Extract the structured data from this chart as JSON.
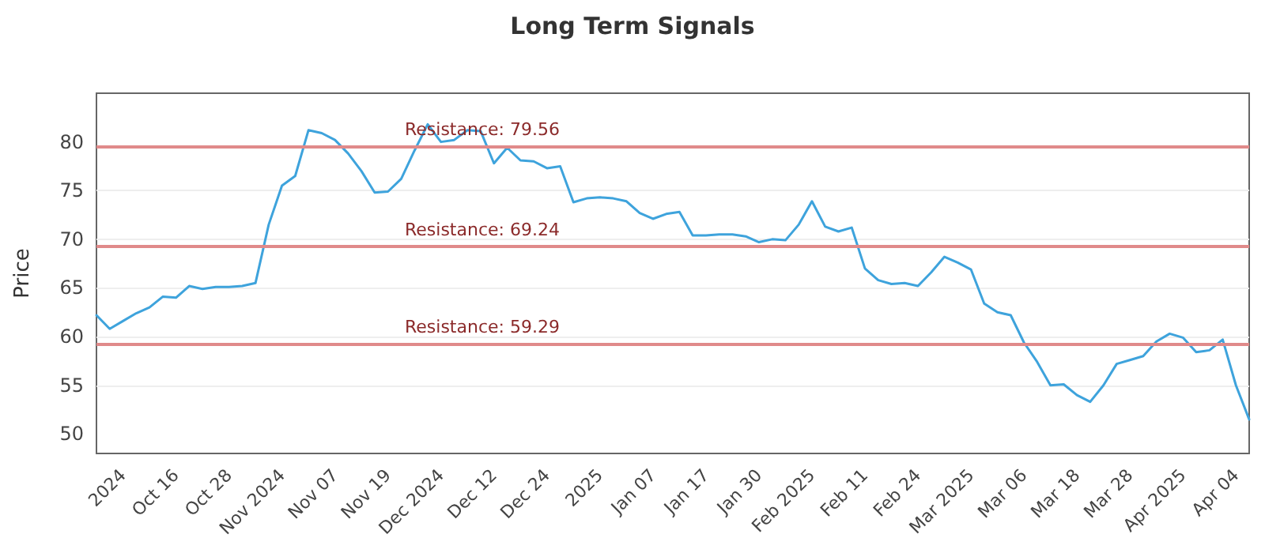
{
  "chart_data": {
    "type": "line",
    "title": "Long Term Signals",
    "ylabel": "Price",
    "categories": [
      null,
      null,
      "2024",
      null,
      null,
      null,
      "Oct 16",
      null,
      null,
      null,
      "Oct 28",
      null,
      null,
      null,
      "Nov 2024",
      null,
      null,
      null,
      "Nov 07",
      null,
      null,
      null,
      "Nov 19",
      null,
      null,
      null,
      "Dec 2024",
      null,
      null,
      null,
      "Dec 12",
      null,
      null,
      null,
      "Dec 24",
      null,
      null,
      null,
      "2025",
      null,
      null,
      null,
      "Jan 07",
      null,
      null,
      null,
      "Jan 17",
      null,
      null,
      null,
      "Jan 30",
      null,
      null,
      null,
      "Feb 2025",
      null,
      null,
      null,
      "Feb 11",
      null,
      null,
      null,
      "Feb 24",
      null,
      null,
      null,
      "Mar 2025",
      null,
      null,
      null,
      "Mar 06",
      null,
      null,
      null,
      "Mar 18",
      null,
      null,
      null,
      "Mar 28",
      null,
      null,
      null,
      "Apr 2025",
      null,
      null,
      null,
      "Apr 04",
      null
    ],
    "series": [
      {
        "color": "#3ea3dc",
        "values": [
          62.2,
          60.8,
          61.6,
          62.4,
          63.0,
          64.1,
          64.0,
          65.2,
          64.9,
          65.1,
          65.1,
          65.2,
          65.5,
          71.5,
          75.5,
          76.5,
          81.2,
          80.9,
          80.2,
          78.8,
          77.0,
          74.8,
          74.9,
          76.2,
          79.1,
          81.8,
          80.0,
          80.2,
          81.2,
          81.1,
          77.8,
          79.4,
          78.1,
          78.0,
          77.3,
          77.5,
          73.8,
          74.2,
          74.3,
          74.2,
          73.9,
          72.7,
          72.1,
          72.6,
          72.8,
          70.4,
          70.4,
          70.5,
          70.5,
          70.3,
          69.7,
          70.0,
          69.9,
          71.5,
          73.9,
          71.3,
          70.8,
          71.2,
          67.0,
          65.8,
          65.4,
          65.5,
          65.2,
          66.6,
          68.2,
          67.6,
          66.9,
          63.4,
          62.5,
          62.2,
          59.4,
          57.4,
          55.0,
          55.1,
          54.0,
          53.3,
          55.0,
          57.2,
          57.6,
          58.0,
          59.5,
          60.3,
          59.9,
          58.4,
          58.6,
          59.7,
          55.0,
          51.5
        ]
      }
    ],
    "ylim": [
      48,
      85
    ],
    "yticks": [
      50,
      55,
      60,
      65,
      70,
      75,
      80
    ],
    "grid": "y",
    "marker": "none",
    "line_style": "solid",
    "ref_lines": [
      {
        "axis": "y",
        "value": 79.56,
        "label": "Resistance: 79.56",
        "color": "#e08a8a"
      },
      {
        "axis": "y",
        "value": 69.24,
        "label": "Resistance: 69.24",
        "color": "#e08a8a"
      },
      {
        "axis": "y",
        "value": 59.29,
        "label": "Resistance: 59.29",
        "color": "#e08a8a"
      }
    ]
  }
}
